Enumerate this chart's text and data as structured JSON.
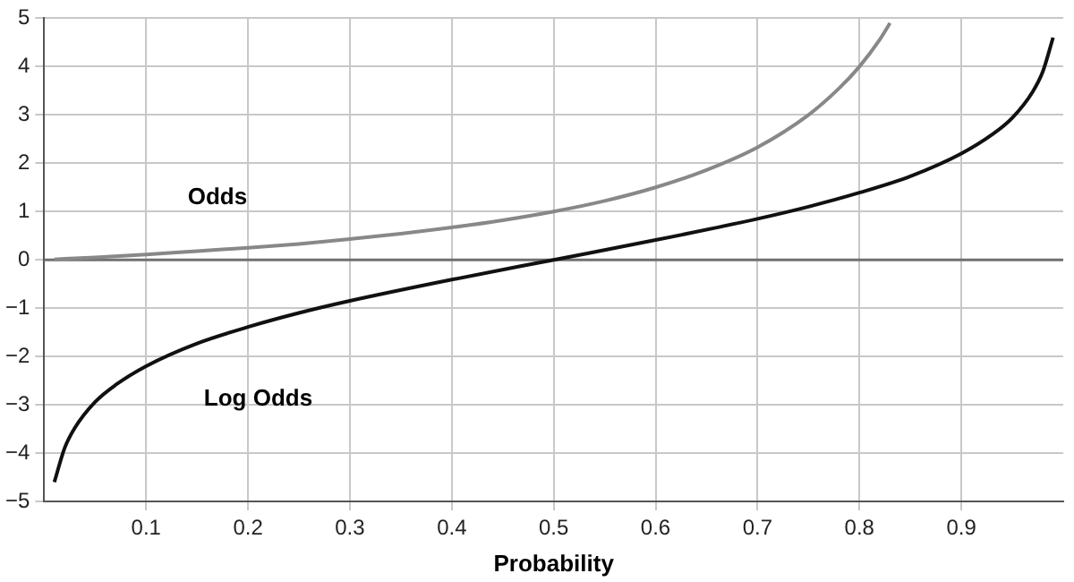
{
  "chart_data": {
    "type": "line",
    "xlabel": "Probability",
    "xlim": [
      0,
      1
    ],
    "xticks": [
      0.1,
      0.2,
      0.3,
      0.4,
      0.5,
      0.6,
      0.7,
      0.8,
      0.9
    ],
    "ylim": [
      -5,
      5
    ],
    "yticks": [
      {
        "value": -5,
        "label": "−5"
      },
      {
        "value": -4,
        "label": "−4"
      },
      {
        "value": -3,
        "label": "−3"
      },
      {
        "value": -2,
        "label": "−2"
      },
      {
        "value": -1,
        "label": "−1"
      },
      0,
      1,
      2,
      3,
      4,
      5
    ],
    "grid": true,
    "legend": false,
    "marker": "none",
    "line_style": "solid",
    "ref_lines": [
      {
        "axis": "y",
        "value": 0,
        "color": "#707070"
      }
    ],
    "series": [
      {
        "name": "Odds",
        "color": "#888888",
        "x": [
          0.01,
          0.05,
          0.1,
          0.15,
          0.2,
          0.25,
          0.3,
          0.35,
          0.4,
          0.45,
          0.5,
          0.55,
          0.6,
          0.65,
          0.7,
          0.75,
          0.78,
          0.8,
          0.82,
          0.83
        ],
        "values": [
          0.01,
          0.05,
          0.11,
          0.18,
          0.25,
          0.33,
          0.43,
          0.54,
          0.67,
          0.82,
          1,
          1.22,
          1.5,
          1.86,
          2.33,
          3,
          3.55,
          4,
          4.56,
          4.9
        ]
      },
      {
        "name": "Log Odds",
        "color": "#111111",
        "x": [
          0.01,
          0.02,
          0.03,
          0.05,
          0.07,
          0.1,
          0.15,
          0.2,
          0.25,
          0.3,
          0.4,
          0.5,
          0.6,
          0.7,
          0.75,
          0.8,
          0.85,
          0.9,
          0.93,
          0.95,
          0.97,
          0.98,
          0.99
        ],
        "values": [
          -4.6,
          -3.9,
          -3.48,
          -2.94,
          -2.59,
          -2.2,
          -1.73,
          -1.39,
          -1.1,
          -0.85,
          -0.41,
          0,
          0.41,
          0.85,
          1.1,
          1.39,
          1.73,
          2.2,
          2.59,
          2.94,
          3.48,
          3.9,
          4.6
        ]
      }
    ]
  }
}
